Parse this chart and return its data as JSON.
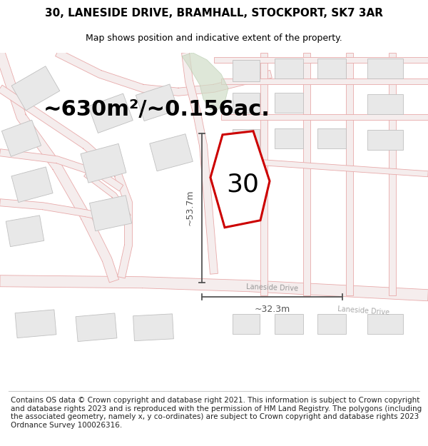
{
  "title": "30, LANESIDE DRIVE, BRAMHALL, STOCKPORT, SK7 3AR",
  "subtitle": "Map shows position and indicative extent of the property.",
  "area_text": "~630m²/~0.156ac.",
  "dim_vertical": "~53.7m",
  "dim_horizontal": "~32.3m",
  "street_label": "Laneside Drive",
  "street_label2": "Laneside Drive",
  "number_label": "30",
  "copyright_text": "Contains OS data © Crown copyright and database right 2021. This information is subject to Crown copyright and database rights 2023 and is reproduced with the permission of HM Land Registry. The polygons (including the associated geometry, namely x, y co-ordinates) are subject to Crown copyright and database rights 2023 Ordnance Survey 100026316.",
  "map_bg": "#f7f7f7",
  "road_stroke": "#e8aaaa",
  "road_fill": "#f5eded",
  "building_fill": "#e8e8e8",
  "building_edge": "#c0c0c0",
  "green_fill": "#d0ddc8",
  "green_edge": "#b0c8a8",
  "water_fill": "#c8dcd8",
  "highlight_color": "#cc0000",
  "dim_color": "#555555",
  "title_fontsize": 11,
  "subtitle_fontsize": 9,
  "area_fontsize": 22,
  "number_fontsize": 26,
  "copyright_fontsize": 7.5,
  "fig_width": 6.0,
  "fig_height": 6.25
}
